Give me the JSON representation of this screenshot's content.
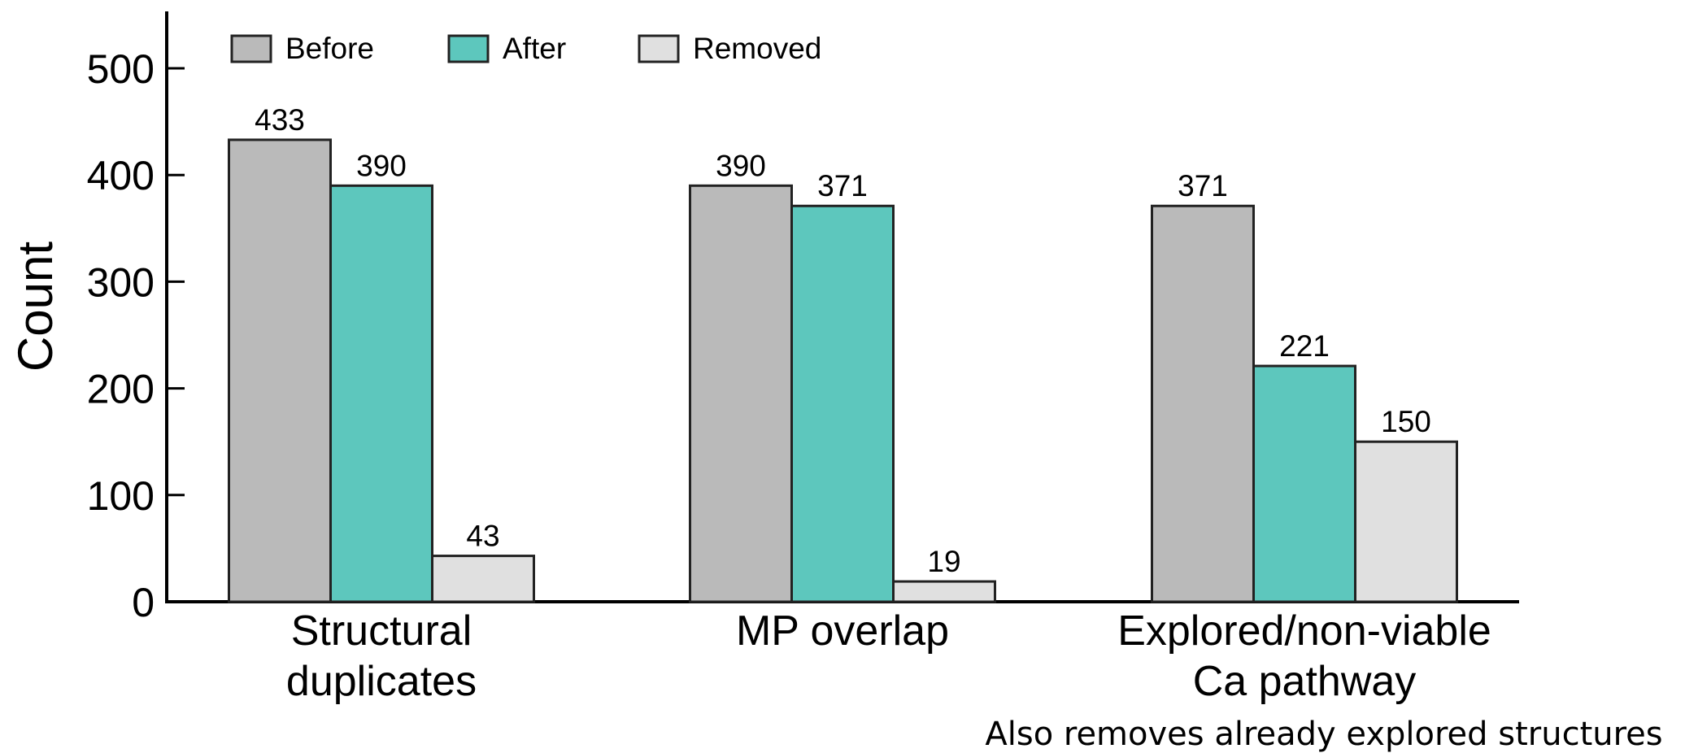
{
  "chart_data": {
    "type": "bar",
    "ylabel": "Count",
    "xlabel": "",
    "ylim": [
      0,
      550
    ],
    "yticks": [
      0,
      100,
      200,
      300,
      400,
      500
    ],
    "categories": [
      [
        "Structural",
        "duplicates"
      ],
      [
        "MP overlap"
      ],
      [
        "Explored/non-viable",
        "Ca pathway"
      ]
    ],
    "series": [
      {
        "name": "Before",
        "color": "#bababa",
        "values": [
          433,
          390,
          371
        ]
      },
      {
        "name": "After",
        "color": "#5dc7bd",
        "values": [
          390,
          371,
          221
        ]
      },
      {
        "name": "Removed",
        "color": "#e0e0e0",
        "values": [
          43,
          19,
          150
        ]
      }
    ],
    "legend_position": "top-left",
    "annotation": "Also removes already explored structures",
    "grid": false
  }
}
